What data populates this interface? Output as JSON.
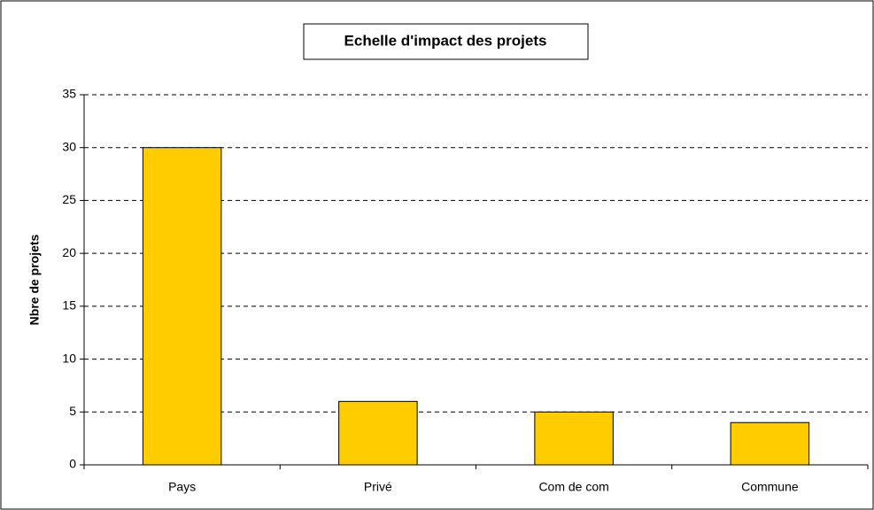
{
  "chart_data": {
    "type": "bar",
    "title": "Echelle d'impact des projets",
    "y_label": "Nbre de projets",
    "categories": [
      "Pays",
      "Privé",
      "Com de com",
      "Commune"
    ],
    "values": [
      30,
      6,
      5,
      4
    ],
    "color": "#ffcc00",
    "ylim": [
      0,
      35
    ],
    "yticks": [
      0,
      5,
      10,
      15,
      20,
      25,
      30,
      35
    ],
    "grid": true
  }
}
